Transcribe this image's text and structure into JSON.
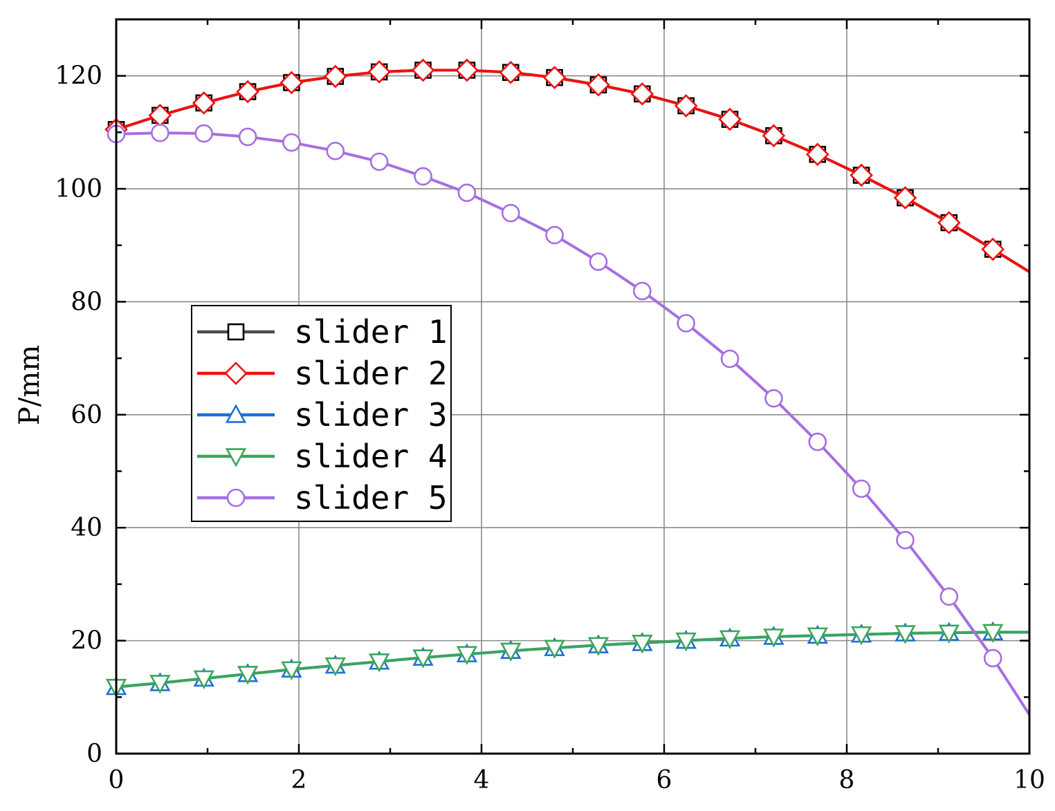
{
  "chart_data": {
    "type": "line",
    "title": "",
    "xlabel": "",
    "ylabel": "P/mm",
    "xlim": [
      0,
      10
    ],
    "ylim": [
      0,
      130
    ],
    "grid": true,
    "legend_position": "middle-left",
    "x_ticks": [
      "0",
      "2",
      "4",
      "6",
      "8",
      "10"
    ],
    "y_ticks": [
      "0",
      "20",
      "40",
      "60",
      "80",
      "100",
      "120"
    ],
    "x": [
      0,
      0.48,
      0.96,
      1.44,
      1.92,
      2.4,
      2.88,
      3.36,
      3.84,
      4.32,
      4.8,
      5.28,
      5.76,
      6.24,
      6.72,
      7.2,
      7.68,
      8.16,
      8.64,
      9.12,
      9.6,
      10
    ],
    "series": [
      {
        "name": "slider 1",
        "color": "#4d4d4d",
        "marker": "square",
        "values": [
          110.5,
          113.0,
          115.2,
          117.2,
          118.8,
          119.9,
          120.7,
          121.0,
          121.0,
          120.6,
          119.7,
          118.4,
          116.8,
          114.7,
          112.3,
          109.4,
          106.1,
          102.4,
          98.4,
          94.0,
          89.3,
          85.3
        ]
      },
      {
        "name": "slider 2",
        "color": "#ee1111",
        "marker": "diamond",
        "values": [
          110.5,
          113.0,
          115.2,
          117.2,
          118.8,
          119.9,
          120.7,
          121.0,
          121.0,
          120.6,
          119.7,
          118.4,
          116.8,
          114.7,
          112.3,
          109.4,
          106.1,
          102.4,
          98.4,
          94.0,
          89.3,
          85.3
        ]
      },
      {
        "name": "slider 3",
        "color": "#1f6fd1",
        "marker": "triangle-up",
        "values": [
          11.8,
          12.5,
          13.3,
          14.1,
          14.9,
          15.6,
          16.3,
          17.0,
          17.6,
          18.2,
          18.7,
          19.2,
          19.6,
          20.0,
          20.4,
          20.7,
          20.9,
          21.1,
          21.3,
          21.4,
          21.5,
          21.5
        ]
      },
      {
        "name": "slider 4",
        "color": "#3ba55c",
        "marker": "triangle-down",
        "values": [
          11.8,
          12.5,
          13.3,
          14.1,
          14.9,
          15.6,
          16.3,
          17.0,
          17.6,
          18.2,
          18.7,
          19.2,
          19.6,
          20.0,
          20.4,
          20.7,
          20.9,
          21.1,
          21.3,
          21.4,
          21.5,
          21.5
        ]
      },
      {
        "name": "slider 5",
        "color": "#a66ee0",
        "marker": "circle",
        "values": [
          109.7,
          109.9,
          109.8,
          109.2,
          108.2,
          106.7,
          104.8,
          102.2,
          99.3,
          95.7,
          91.8,
          87.1,
          81.9,
          76.2,
          69.9,
          62.9,
          55.2,
          46.9,
          37.8,
          27.8,
          16.9,
          6.9
        ]
      }
    ]
  }
}
